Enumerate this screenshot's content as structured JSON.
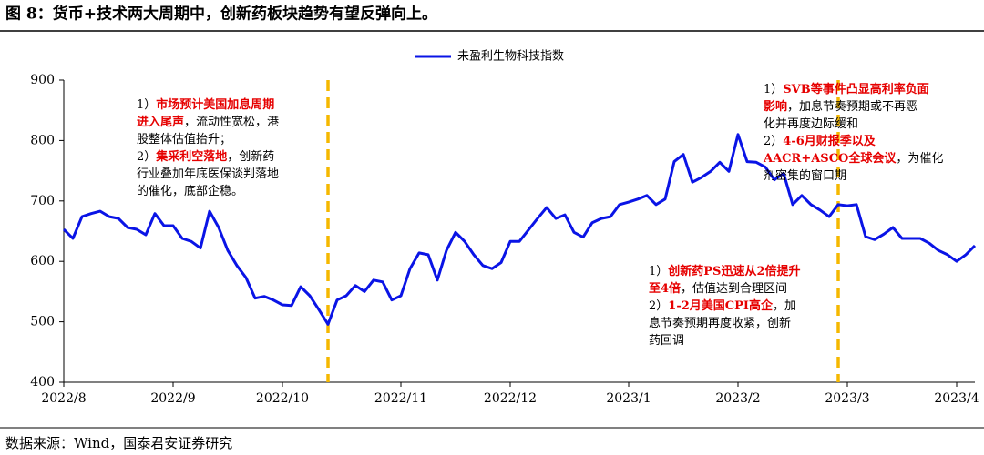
{
  "title": "图 8：货币+技术两大周期中，创新药板块趋势有望反弹向上。",
  "source": "数据来源：Wind，国泰君安证券研究",
  "chart_data": {
    "type": "line",
    "categories": [
      "2022/8",
      null,
      null,
      null,
      null,
      null,
      null,
      null,
      null,
      null,
      null,
      null,
      "2022/9",
      null,
      null,
      null,
      null,
      null,
      null,
      null,
      null,
      null,
      null,
      null,
      "2022/10",
      null,
      null,
      null,
      null,
      null,
      null,
      null,
      null,
      null,
      null,
      null,
      null,
      "2022/11",
      null,
      null,
      null,
      null,
      null,
      null,
      null,
      null,
      null,
      null,
      null,
      "2022/12",
      null,
      null,
      null,
      null,
      null,
      null,
      null,
      null,
      null,
      null,
      null,
      null,
      "2023/1",
      null,
      null,
      null,
      null,
      null,
      null,
      null,
      null,
      null,
      null,
      null,
      "2023/2",
      null,
      null,
      null,
      null,
      null,
      null,
      null,
      null,
      null,
      null,
      null,
      "2023/3",
      null,
      null,
      null,
      null,
      null,
      null,
      null,
      null,
      null,
      null,
      null,
      "2023/4",
      null,
      null
    ],
    "series": [
      {
        "name": "未盈利生物科技指数",
        "color": "#0a14e6",
        "values": [
          653,
          638,
          674,
          679,
          683,
          674,
          671,
          656,
          653,
          644,
          679,
          659,
          659,
          638,
          633,
          622,
          683,
          656,
          618,
          593,
          573,
          539,
          542,
          536,
          528,
          527,
          558,
          543,
          520,
          496,
          536,
          543,
          560,
          550,
          569,
          566,
          536,
          543,
          588,
          614,
          611,
          569,
          618,
          648,
          633,
          611,
          593,
          588,
          598,
          633,
          633,
          652,
          671,
          689,
          671,
          677,
          648,
          640,
          664,
          671,
          674,
          694,
          698,
          703,
          709,
          694,
          703,
          765,
          777,
          731,
          739,
          749,
          764,
          749,
          810,
          765,
          764,
          756,
          735,
          746,
          694,
          709,
          694,
          685,
          674,
          694,
          692,
          694,
          641,
          636,
          645,
          656,
          638,
          638,
          638,
          630,
          618,
          611,
          600,
          611,
          626
        ]
      }
    ],
    "ylim": [
      400,
      900
    ],
    "yticks": [
      400,
      500,
      600,
      700,
      800,
      900
    ],
    "annotations": [
      {
        "lines": [
          [
            {
              "text": "1）"
            },
            {
              "text": "市场预计美国加息周期",
              "highlight": true
            }
          ],
          [
            {
              "text": "进入尾声",
              "highlight": true
            },
            {
              "text": "，流动性宽松，港"
            }
          ],
          [
            {
              "text": "股整体估值抬升；"
            }
          ],
          [
            {
              "text": "2）"
            },
            {
              "text": "集采利空落地",
              "highlight": true
            },
            {
              "text": "，创新药"
            }
          ],
          [
            {
              "text": "行业叠加年底医保谈判落地"
            }
          ],
          [
            {
              "text": "的催化，底部企稳。"
            }
          ]
        ]
      },
      {
        "lines": [
          [
            {
              "text": "1）"
            },
            {
              "text": "SVB等事件凸显高利率负面",
              "highlight": true
            }
          ],
          [
            {
              "text": "影响",
              "highlight": true
            },
            {
              "text": "，加息节奏预期或不再恶"
            }
          ],
          [
            {
              "text": "化并再度边际缓和"
            }
          ],
          [
            {
              "text": "2）"
            },
            {
              "text": "4-6月财报季以及",
              "highlight": true
            }
          ],
          [
            {
              "text": "AACR+ASCO全球会议",
              "highlight": true
            },
            {
              "text": "，为催化"
            }
          ],
          [
            {
              "text": "剂密集的窗口期"
            }
          ]
        ]
      },
      {
        "lines": [
          [
            {
              "text": "1）"
            },
            {
              "text": "创新药PS迅速从2倍提升",
              "highlight": true
            }
          ],
          [
            {
              "text": "至4倍",
              "highlight": true
            },
            {
              "text": "，估值达到合理区间"
            }
          ],
          [
            {
              "text": "2）"
            },
            {
              "text": "1-2月美国CPI高企",
              "highlight": true
            },
            {
              "text": "，加"
            }
          ],
          [
            {
              "text": "息节奏预期再度收紧，创新"
            }
          ],
          [
            {
              "text": "药回调"
            }
          ]
        ]
      }
    ]
  }
}
